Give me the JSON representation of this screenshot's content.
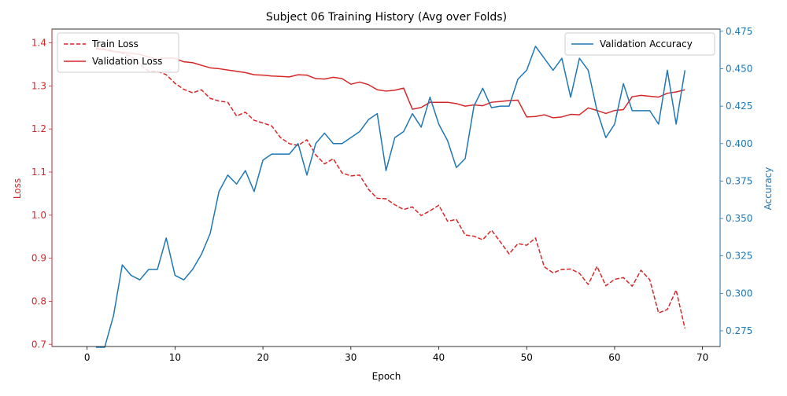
{
  "chart_data": {
    "type": "line",
    "title": "Subject 06 Training History (Avg over Folds)",
    "xlabel": "Epoch",
    "ylabel_left": "Loss",
    "ylabel_right": "Accuracy",
    "xlim": [
      -4,
      72
    ],
    "ylim_left": [
      0.695,
      1.432
    ],
    "ylim_right": [
      0.2645,
      0.4765
    ],
    "x_ticks": [
      0,
      10,
      20,
      30,
      40,
      50,
      60,
      70
    ],
    "y_ticks_left": [
      0.7,
      0.8,
      0.9,
      1.0,
      1.1,
      1.2,
      1.3,
      1.4
    ],
    "y_tick_labels_left": [
      "0.7",
      "0.8",
      "0.9",
      "1.0",
      "1.1",
      "1.2",
      "1.3",
      "1.4"
    ],
    "y_ticks_right": [
      0.275,
      0.3,
      0.325,
      0.35,
      0.375,
      0.4,
      0.425,
      0.45,
      0.475
    ],
    "y_tick_labels_right": [
      "0.275",
      "0.300",
      "0.325",
      "0.350",
      "0.375",
      "0.400",
      "0.425",
      "0.450",
      "0.475"
    ],
    "grid": false,
    "legend_left_placement": "upper-left",
    "legend_right_placement": "upper-right",
    "colors": {
      "loss": "#d62728",
      "accuracy": "#1f77b4"
    },
    "x": [
      1,
      2,
      3,
      4,
      5,
      6,
      7,
      8,
      9,
      10,
      11,
      12,
      13,
      14,
      15,
      16,
      17,
      18,
      19,
      20,
      21,
      22,
      23,
      24,
      25,
      26,
      27,
      28,
      29,
      30,
      31,
      32,
      33,
      34,
      35,
      36,
      37,
      38,
      39,
      40,
      41,
      42,
      43,
      44,
      45,
      46,
      47,
      48,
      49,
      50,
      51,
      52,
      53,
      54,
      55,
      56,
      57,
      58,
      59,
      60,
      61,
      62,
      63,
      64,
      65,
      66,
      67,
      68
    ],
    "series": [
      {
        "name": "Train Loss",
        "axis": "left",
        "style": "dashed",
        "values": [
          1.388,
          1.386,
          1.381,
          1.376,
          1.369,
          1.35,
          1.334,
          1.334,
          1.326,
          1.306,
          1.292,
          1.284,
          1.291,
          1.271,
          1.265,
          1.262,
          1.23,
          1.239,
          1.22,
          1.214,
          1.207,
          1.18,
          1.166,
          1.162,
          1.175,
          1.14,
          1.119,
          1.131,
          1.098,
          1.091,
          1.093,
          1.06,
          1.039,
          1.038,
          1.024,
          1.013,
          1.019,
          0.999,
          1.01,
          1.023,
          0.986,
          0.99,
          0.954,
          0.951,
          0.943,
          0.965,
          0.938,
          0.91,
          0.934,
          0.93,
          0.947,
          0.88,
          0.866,
          0.874,
          0.875,
          0.865,
          0.839,
          0.881,
          0.836,
          0.851,
          0.855,
          0.835,
          0.872,
          0.85,
          0.773,
          0.781,
          0.826,
          0.737
        ]
      },
      {
        "name": "Validation Loss",
        "axis": "left",
        "style": "solid",
        "values": [
          1.386,
          1.384,
          1.38,
          1.378,
          1.376,
          1.373,
          1.367,
          1.362,
          1.365,
          1.364,
          1.356,
          1.354,
          1.348,
          1.342,
          1.34,
          1.337,
          1.334,
          1.331,
          1.326,
          1.325,
          1.323,
          1.322,
          1.321,
          1.326,
          1.325,
          1.317,
          1.316,
          1.32,
          1.317,
          1.304,
          1.309,
          1.303,
          1.291,
          1.288,
          1.29,
          1.295,
          1.246,
          1.25,
          1.262,
          1.262,
          1.262,
          1.259,
          1.253,
          1.256,
          1.254,
          1.262,
          1.264,
          1.266,
          1.267,
          1.228,
          1.229,
          1.233,
          1.226,
          1.228,
          1.234,
          1.233,
          1.249,
          1.243,
          1.236,
          1.243,
          1.245,
          1.275,
          1.278,
          1.276,
          1.274,
          1.283,
          1.286,
          1.291
        ]
      },
      {
        "name": "Validation Accuracy",
        "axis": "right",
        "style": "solid",
        "values": [
          0.264,
          0.264,
          0.285,
          0.319,
          0.312,
          0.309,
          0.316,
          0.316,
          0.337,
          0.312,
          0.309,
          0.316,
          0.326,
          0.34,
          0.368,
          0.379,
          0.373,
          0.382,
          0.368,
          0.389,
          0.393,
          0.393,
          0.393,
          0.4,
          0.379,
          0.4,
          0.407,
          0.4,
          0.4,
          0.404,
          0.408,
          0.416,
          0.42,
          0.382,
          0.404,
          0.408,
          0.42,
          0.411,
          0.431,
          0.413,
          0.402,
          0.384,
          0.39,
          0.425,
          0.437,
          0.424,
          0.425,
          0.425,
          0.443,
          0.449,
          0.465,
          0.457,
          0.449,
          0.457,
          0.431,
          0.457,
          0.449,
          0.422,
          0.404,
          0.413,
          0.44,
          0.422,
          0.422,
          0.422,
          0.413,
          0.449,
          0.413,
          0.449
        ]
      }
    ]
  }
}
